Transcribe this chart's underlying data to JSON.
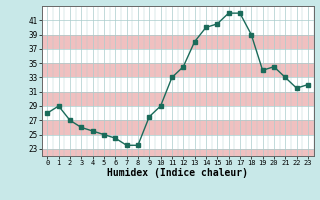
{
  "x": [
    0,
    1,
    2,
    3,
    4,
    5,
    6,
    7,
    8,
    9,
    10,
    11,
    12,
    13,
    14,
    15,
    16,
    17,
    18,
    19,
    20,
    21,
    22,
    23
  ],
  "y": [
    28,
    29,
    27,
    26,
    25.5,
    25,
    24.5,
    23.5,
    23.5,
    27.5,
    29,
    33,
    34.5,
    38,
    40,
    40.5,
    42,
    42,
    39,
    34,
    34.5,
    33,
    31.5,
    32
  ],
  "line_color": "#1a6b5a",
  "marker_color": "#1a6b5a",
  "bg_color": "#c8e8e8",
  "grid_white": "#ffffff",
  "grid_pink": "#f0c0c0",
  "xlabel": "Humidex (Indice chaleur)",
  "ylim": [
    22,
    43
  ],
  "xlim": [
    -0.5,
    23.5
  ],
  "yticks": [
    23,
    25,
    27,
    29,
    31,
    33,
    35,
    37,
    39,
    41
  ],
  "xticks": [
    0,
    1,
    2,
    3,
    4,
    5,
    6,
    7,
    8,
    9,
    10,
    11,
    12,
    13,
    14,
    15,
    16,
    17,
    18,
    19,
    20,
    21,
    22,
    23
  ]
}
